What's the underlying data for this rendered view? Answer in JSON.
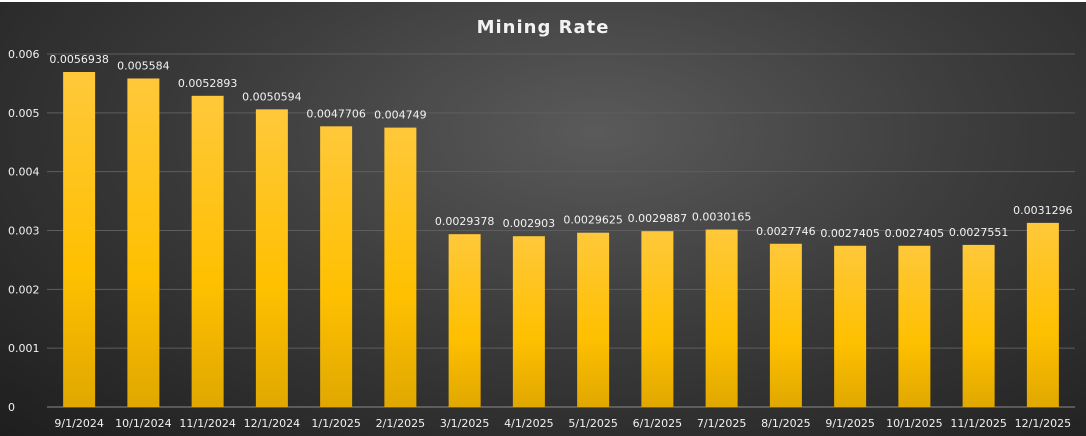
{
  "chart_data": {
    "type": "bar",
    "title": "Mining Rate",
    "xlabel": "",
    "ylabel": "",
    "ylim": [
      0,
      0.006
    ],
    "yticks": [
      "0",
      "0.001",
      "0.002",
      "0.003",
      "0.004",
      "0.005",
      "0.006"
    ],
    "grid": true,
    "legend": "none",
    "bar_color": "#FFC000",
    "categories": [
      "9/1/2024",
      "10/1/2024",
      "11/1/2024",
      "12/1/2024",
      "1/1/2025",
      "2/1/2025",
      "3/1/2025",
      "4/1/2025",
      "5/1/2025",
      "6/1/2025",
      "7/1/2025",
      "8/1/2025",
      "9/1/2025",
      "10/1/2025",
      "11/1/2025",
      "12/1/2025"
    ],
    "values": [
      0.0056938,
      0.005584,
      0.0052893,
      0.0050594,
      0.0047706,
      0.004749,
      0.0029378,
      0.002903,
      0.0029625,
      0.0029887,
      0.0030165,
      0.0027746,
      0.0027405,
      0.0027405,
      0.0027551,
      0.0031296
    ],
    "data_labels": [
      "0.0056938",
      "0.005584",
      "0.0052893",
      "0.0050594",
      "0.0047706",
      "0.004749",
      "0.0029378",
      "0.002903",
      "0.0029625",
      "0.0029887",
      "0.0030165",
      "0.0027746",
      "0.0027405",
      "0.0027405",
      "0.0027551",
      "0.0031296"
    ]
  }
}
